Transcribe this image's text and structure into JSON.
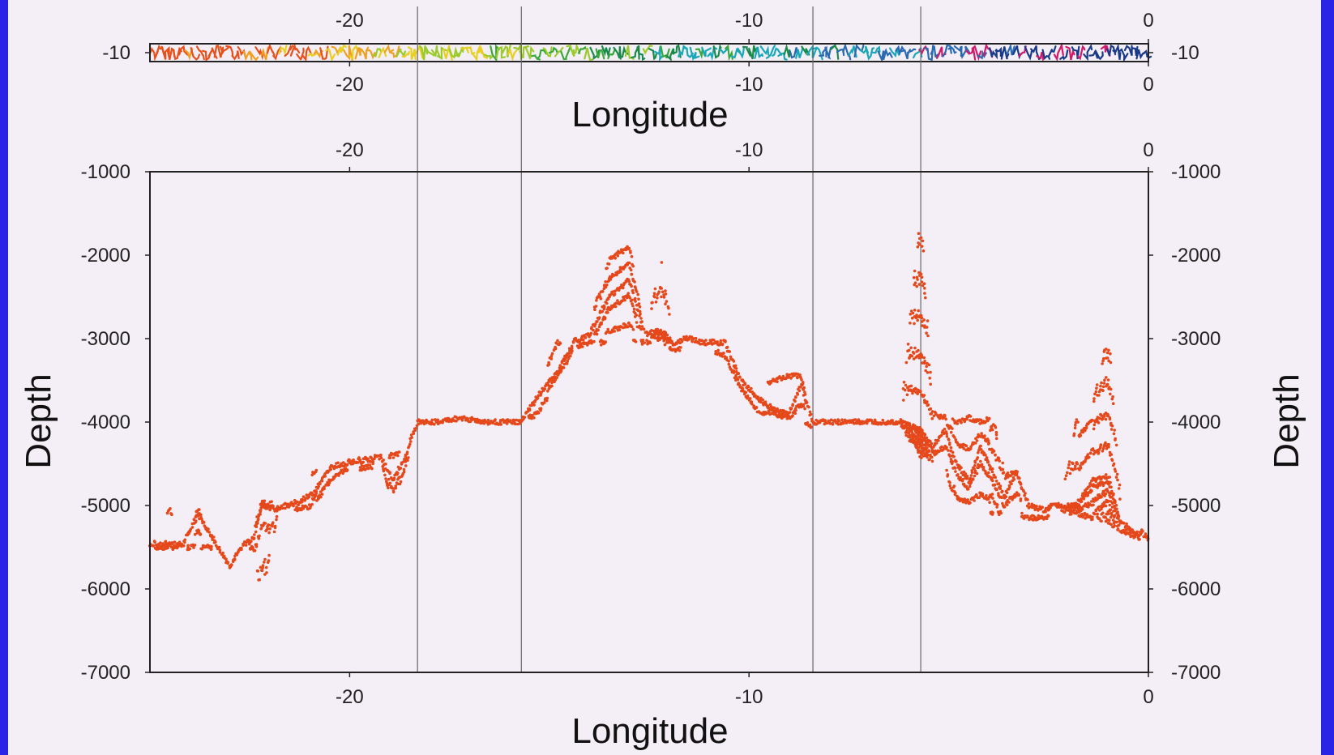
{
  "chart_data": [
    {
      "type": "line",
      "title": "",
      "xlabel": "Longitude",
      "ylabel": "",
      "xlim": [
        -25,
        0
      ],
      "ylim": [
        -10.5,
        -9.5
      ],
      "x_ticks": [
        -20,
        -10,
        0
      ],
      "y_ticks": [
        -10
      ],
      "x_tick_labels_top": [
        "-20",
        "-10",
        "0"
      ],
      "x_tick_labels_bottom": [
        "-20",
        "-10",
        "0"
      ],
      "y_tick_labels_left": [
        "-10"
      ],
      "y_tick_labels_right": [
        "-10"
      ],
      "contour_colors": [
        "#e8501a",
        "#f0a020",
        "#e8d020",
        "#9acb2a",
        "#3aa83a",
        "#1a8a4a",
        "#18a8b8",
        "#2a6ab0",
        "#d01a6a",
        "#1a3a8a"
      ],
      "section_boundaries_longitude": [
        -18.3,
        -15.7,
        -8.4,
        -5.7
      ]
    },
    {
      "type": "scatter",
      "title": "",
      "xlabel": "Longitude",
      "ylabel": "Depth",
      "ylabel_right": "Depth",
      "xlim": [
        -25,
        0
      ],
      "ylim": [
        -7000,
        -1000
      ],
      "x_ticks": [
        -20,
        -10,
        0
      ],
      "y_ticks": [
        -1000,
        -2000,
        -3000,
        -4000,
        -5000,
        -6000,
        -7000
      ],
      "x_tick_labels_top": [
        "-20",
        "-10",
        "0"
      ],
      "x_tick_labels_bottom": [
        "-20",
        "-10",
        "0"
      ],
      "y_tick_labels_left": [
        "-1000",
        "-2000",
        "-3000",
        "-4000",
        "-5000",
        "-6000",
        "-7000"
      ],
      "y_tick_labels_right": [
        "-1000",
        "-2000",
        "-3000",
        "-4000",
        "-5000",
        "-6000",
        "-7000"
      ],
      "grid": false,
      "point_color": "#e5481a",
      "section_boundaries_longitude": [
        -18.3,
        -15.7,
        -8.4,
        -5.7
      ],
      "series": [
        {
          "x": [
            -25,
            -24.5,
            -24.2,
            -23.8,
            -23.3,
            -23.0,
            -22.7,
            -22.4,
            -22.2,
            -21.8,
            -21.4,
            -20.9,
            -20.5,
            -20.2,
            -19.9,
            -19.6,
            -19.2,
            -18.9,
            -18.6,
            -18.3,
            -17.8,
            -17.2,
            -16.6,
            -16.0,
            -15.7,
            -15.3,
            -14.8,
            -14.4,
            -14.0,
            -13.5,
            -13.0,
            -12.6,
            -12.2,
            -11.9,
            -11.5,
            -11.1,
            -10.6,
            -10.2,
            -9.8,
            -9.4,
            -9.0,
            -8.7,
            -8.4,
            -8.0,
            -7.4,
            -6.8,
            -6.2,
            -5.7,
            -5.4,
            -5.1,
            -4.8,
            -4.5,
            -4.2,
            -3.9,
            -3.6,
            -3.3,
            -3.0,
            -2.6,
            -2.2,
            -1.8,
            -1.4,
            -1.0,
            -0.7,
            -0.4,
            0
          ],
          "y": [
            -5500,
            -5450,
            -5500,
            -5100,
            -5500,
            -5750,
            -5500,
            -5400,
            -5000,
            -5050,
            -5000,
            -4850,
            -4550,
            -4500,
            -4500,
            -4450,
            -4450,
            -4700,
            -4400,
            -4000,
            -4000,
            -3950,
            -4000,
            -4000,
            -4000,
            -3700,
            -3400,
            -3050,
            -2950,
            -2500,
            -2300,
            -2950,
            -2900,
            -3050,
            -3000,
            -3050,
            -3050,
            -3500,
            -3700,
            -3850,
            -3900,
            -3550,
            -4000,
            -4000,
            -4000,
            -4000,
            -4000,
            -4100,
            -4300,
            -4100,
            -4500,
            -4700,
            -4300,
            -4600,
            -4900,
            -4600,
            -5000,
            -5050,
            -5000,
            -5000,
            -4700,
            -4650,
            -5200,
            -5300,
            -5400
          ],
          "upper": [
            -5500,
            -5050,
            -5500,
            -5050,
            -5500,
            -5700,
            -5500,
            -5300,
            -4950,
            -5000,
            -4950,
            -4600,
            -4450,
            -4450,
            -4450,
            -4400,
            -4400,
            -4400,
            -4350,
            -4000,
            -4000,
            -3950,
            -4000,
            -4000,
            -4000,
            -3600,
            -3050,
            -3000,
            -2850,
            -2050,
            -1900,
            -2950,
            -2100,
            -3000,
            -3000,
            -3050,
            -3000,
            -3450,
            -3600,
            -3500,
            -3450,
            -3450,
            -4000,
            -4000,
            -4000,
            -4000,
            -4000,
            -1500,
            -3900,
            -3950,
            -4000,
            -3950,
            -4000,
            -3950,
            -4650,
            -4600,
            -5000,
            -5000,
            -5000,
            -4000,
            -3800,
            -2950,
            -5000,
            -5150,
            -5400
          ],
          "lower": [
            -5500,
            -5500,
            -5500,
            -5500,
            -5500,
            -5800,
            -5500,
            -5500,
            -6050,
            -5100,
            -5050,
            -5000,
            -4700,
            -4600,
            -4550,
            -4550,
            -4500,
            -5000,
            -4500,
            -4050,
            -4000,
            -4000,
            -4000,
            -4000,
            -4000,
            -3900,
            -3500,
            -3100,
            -3050,
            -3050,
            -3000,
            -3050,
            -3000,
            -3150,
            -3100,
            -3100,
            -3200,
            -3600,
            -3850,
            -3950,
            -4000,
            -4000,
            -4050,
            -4050,
            -4050,
            -4050,
            -4050,
            -4400,
            -4450,
            -4500,
            -5050,
            -5050,
            -5050,
            -5100,
            -5100,
            -5100,
            -5150,
            -5150,
            -5050,
            -5100,
            -5150,
            -5200,
            -5300,
            -5350,
            -5450
          ]
        }
      ]
    }
  ]
}
